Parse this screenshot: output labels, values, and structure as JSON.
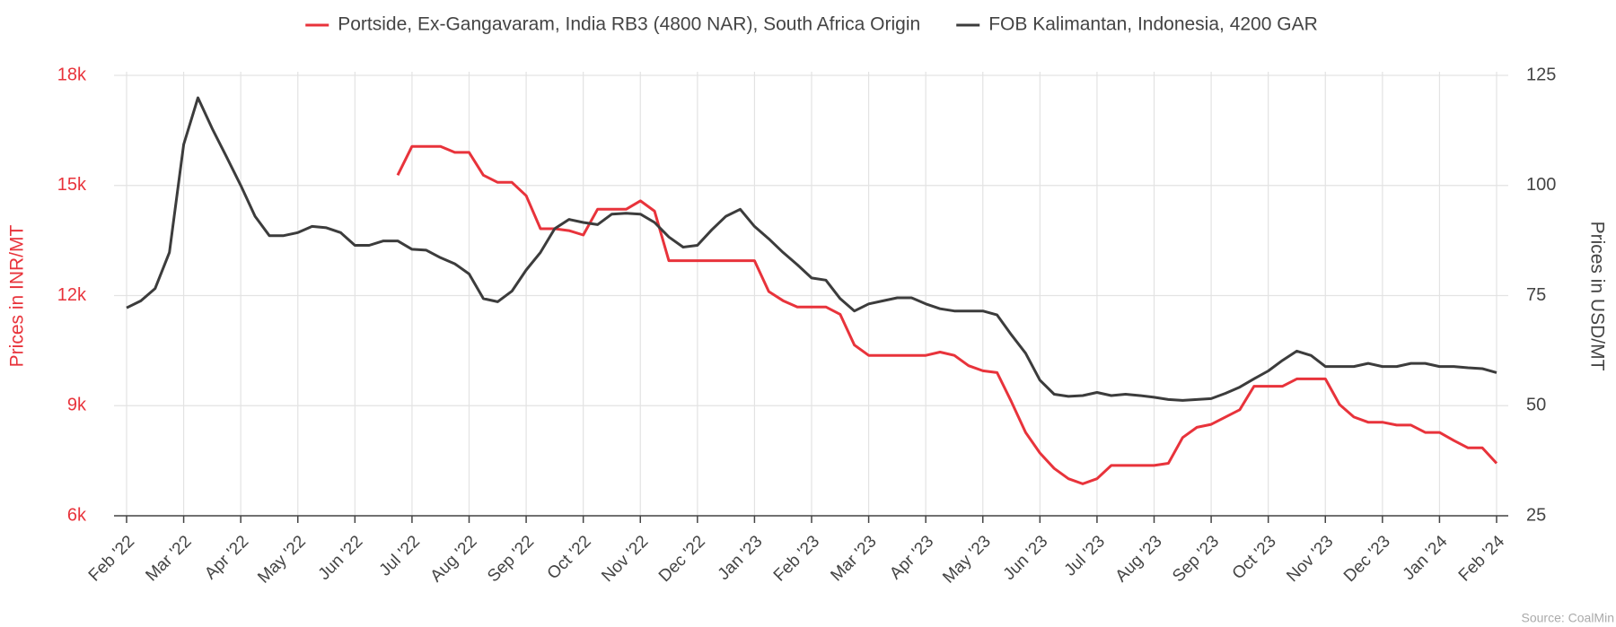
{
  "chart_data": {
    "type": "line",
    "legend": "top",
    "grid": true,
    "y_label": "Prices in INR/MT",
    "y2_label": "Prices in USD/MT",
    "source": "Source: CoalMin",
    "x": [
      0,
      0.25,
      0.5,
      0.75,
      1,
      1.25,
      1.5,
      1.75,
      2,
      2.25,
      2.5,
      2.75,
      3,
      3.25,
      3.5,
      3.75,
      4,
      4.25,
      4.5,
      4.75,
      5,
      5.25,
      5.5,
      5.75,
      6,
      6.25,
      6.5,
      6.75,
      7,
      7.25,
      7.5,
      7.75,
      8,
      8.25,
      8.5,
      8.75,
      9,
      9.25,
      9.5,
      9.75,
      10,
      10.25,
      10.5,
      10.75,
      11,
      11.25,
      11.5,
      11.75,
      12,
      12.25,
      12.5,
      12.75,
      13,
      13.25,
      13.5,
      13.75,
      14,
      14.25,
      14.5,
      14.75,
      15,
      15.25,
      15.5,
      15.75,
      16,
      16.25,
      16.5,
      16.75,
      17,
      17.25,
      17.5,
      17.75,
      18,
      18.25,
      18.5,
      18.75,
      19,
      19.25,
      19.5,
      19.75,
      20,
      20.25,
      20.5,
      20.75,
      21,
      21.25,
      21.5,
      21.75,
      22,
      22.25,
      22.5,
      22.75,
      23,
      23.25,
      23.5,
      23.75,
      24
    ],
    "xlim": [
      0,
      24
    ],
    "xticks": [
      {
        "value": 0,
        "label": "Feb '22"
      },
      {
        "value": 1,
        "label": "Mar '22"
      },
      {
        "value": 2,
        "label": "Apr '22"
      },
      {
        "value": 3,
        "label": "May '22"
      },
      {
        "value": 4,
        "label": "Jun '22"
      },
      {
        "value": 5,
        "label": "Jul '22"
      },
      {
        "value": 6,
        "label": "Aug '22"
      },
      {
        "value": 7,
        "label": "Sep '22"
      },
      {
        "value": 8,
        "label": "Oct '22"
      },
      {
        "value": 9,
        "label": "Nov '22"
      },
      {
        "value": 10,
        "label": "Dec '22"
      },
      {
        "value": 11,
        "label": "Jan '23"
      },
      {
        "value": 12,
        "label": "Feb '23"
      },
      {
        "value": 13,
        "label": "Mar '23"
      },
      {
        "value": 14,
        "label": "Apr '23"
      },
      {
        "value": 15,
        "label": "May '23"
      },
      {
        "value": 16,
        "label": "Jun '23"
      },
      {
        "value": 17,
        "label": "Jul '23"
      },
      {
        "value": 18,
        "label": "Aug '23"
      },
      {
        "value": 19,
        "label": "Sep '23"
      },
      {
        "value": 20,
        "label": "Oct '23"
      },
      {
        "value": 21,
        "label": "Nov '23"
      },
      {
        "value": 22,
        "label": "Dec '23"
      },
      {
        "value": 23,
        "label": "Jan '24"
      },
      {
        "value": 24,
        "label": "Feb '24"
      }
    ],
    "ylim": [
      6000,
      18000
    ],
    "yticks": [
      {
        "value": 6000,
        "label": "6k"
      },
      {
        "value": 9000,
        "label": "9k"
      },
      {
        "value": 12000,
        "label": "12k"
      },
      {
        "value": 15000,
        "label": "15k"
      },
      {
        "value": 18000,
        "label": "18k"
      }
    ],
    "y2lim": [
      25,
      125
    ],
    "y2ticks": [
      25,
      50,
      75,
      100,
      125
    ],
    "series": [
      {
        "name": "Portside, Ex-Gangavaram, India RB3 (4800 NAR), South Africa Origin",
        "color": "#e8333b",
        "axis": "y",
        "values": [
          null,
          null,
          null,
          null,
          null,
          null,
          null,
          null,
          null,
          null,
          null,
          null,
          null,
          null,
          null,
          null,
          null,
          null,
          null,
          15280,
          16065,
          16065,
          16065,
          15900,
          15900,
          15280,
          15085,
          15085,
          14720,
          13820,
          13820,
          13770,
          13650,
          14350,
          14350,
          14350,
          14580,
          14300,
          12950,
          12950,
          12950,
          12950,
          12950,
          12950,
          12950,
          12110,
          11860,
          11690,
          11690,
          11690,
          11490,
          10650,
          10370,
          10370,
          10370,
          10370,
          10370,
          10460,
          10370,
          10090,
          9950,
          9900,
          9110,
          8270,
          7710,
          7290,
          7010,
          6870,
          7010,
          7370,
          7370,
          7370,
          7370,
          7430,
          8130,
          8410,
          8490,
          8690,
          8890,
          9530,
          9530,
          9530,
          9730,
          9730,
          9730,
          9030,
          8690,
          8550,
          8550,
          8470,
          8470,
          8270,
          8270,
          8050,
          7850,
          7850,
          7430
        ]
      },
      {
        "name": "FOB Kalimantan, Indonesia, 4200 GAR",
        "color": "#3c3c3c",
        "axis": "y2",
        "values": [
          72.2,
          73.8,
          76.6,
          84.8,
          109.3,
          119.9,
          112.9,
          106.5,
          100,
          93,
          88.6,
          88.6,
          89.3,
          90.7,
          90.4,
          89.3,
          86.4,
          86.4,
          87.4,
          87.4,
          85.5,
          85.3,
          83.6,
          82.2,
          79.9,
          74.3,
          73.6,
          76,
          80.8,
          84.8,
          90.2,
          92.3,
          91.6,
          91.1,
          93.5,
          93.7,
          93.5,
          91.6,
          88.3,
          86,
          86.4,
          89.9,
          93,
          94.6,
          90.7,
          87.9,
          84.8,
          82,
          79,
          78.5,
          74.3,
          71.5,
          73.1,
          73.8,
          74.5,
          74.5,
          73.1,
          72,
          71.5,
          71.5,
          71.5,
          70.6,
          66.1,
          61.9,
          55.8,
          52.6,
          52.1,
          52.3,
          53,
          52.3,
          52.6,
          52.3,
          51.9,
          51.4,
          51.2,
          51.4,
          51.6,
          52.8,
          54.2,
          56.1,
          57.9,
          60.3,
          62.4,
          61.4,
          58.9,
          58.9,
          58.9,
          59.6,
          58.9,
          58.9,
          59.6,
          59.6,
          58.9,
          58.9,
          58.6,
          58.4,
          57.5
        ]
      }
    ]
  }
}
